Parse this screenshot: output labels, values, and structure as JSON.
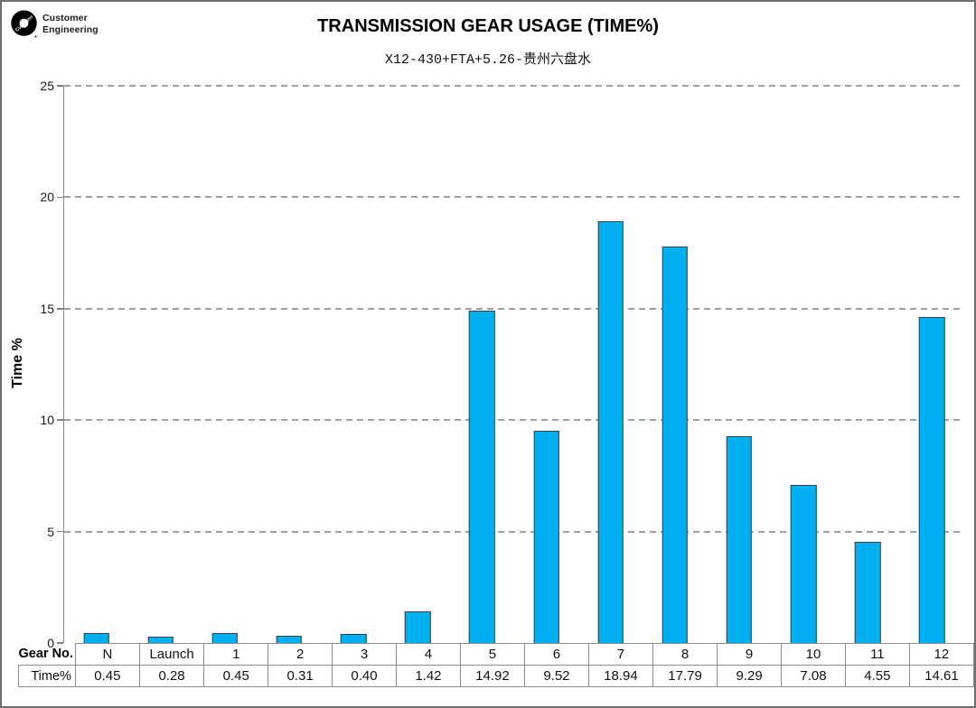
{
  "logo": {
    "brand": "Cummins",
    "dept_line1": "Customer",
    "dept_line2": "Engineering"
  },
  "header": {
    "title": "TRANSMISSION GEAR USAGE (TIME%)",
    "subtitle": "X12-430+FTA+5.26-贵州六盘水"
  },
  "chart_data": {
    "type": "bar",
    "title": "TRANSMISSION GEAR USAGE (TIME%)",
    "subtitle": "X12-430+FTA+5.26-贵州六盘水",
    "categories": [
      "N",
      "Launch",
      "1",
      "2",
      "3",
      "4",
      "5",
      "6",
      "7",
      "8",
      "9",
      "10",
      "11",
      "12"
    ],
    "series": [
      {
        "name": "Time%",
        "values": [
          0.45,
          0.28,
          0.45,
          0.31,
          0.4,
          1.42,
          14.92,
          9.52,
          18.94,
          17.79,
          9.29,
          7.08,
          4.55,
          14.61
        ]
      }
    ],
    "xlabel": "Gear No.",
    "ylabel": "Time %",
    "ylim": [
      0,
      25
    ],
    "yticks": [
      0,
      5,
      10,
      15,
      20,
      25
    ],
    "grid": "horizontal dashed",
    "legend": "none",
    "data_table_shown": true,
    "bar_color": "#00B0F0",
    "bar_border_color": "#404040",
    "gridline_color": "#A0A0A0"
  }
}
